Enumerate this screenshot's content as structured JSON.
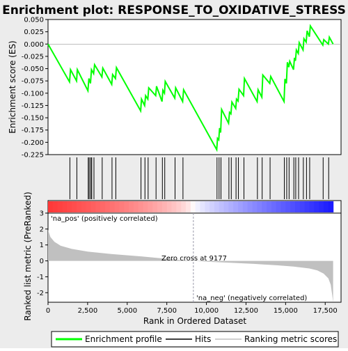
{
  "chart_data": {
    "type": "line",
    "title": "Enrichment plot: RESPONSE_TO_OXIDATIVE_STRESS",
    "top_panel": {
      "ylabel": "Enrichment score (ES)",
      "ylim": [
        -0.225,
        0.05
      ],
      "yticks": [
        0.05,
        0.025,
        0.0,
        -0.025,
        -0.05,
        -0.075,
        -0.1,
        -0.125,
        -0.15,
        -0.175,
        -0.2,
        -0.225
      ],
      "ytick_labels": [
        "0.050",
        "0.025",
        "0.000",
        "-0.025",
        "-0.050",
        "-0.075",
        "-0.100",
        "-0.125",
        "-0.150",
        "-0.175",
        "-0.200",
        "-0.225"
      ],
      "series": [
        {
          "name": "Enrichment profile",
          "color": "#00ff00",
          "x": [
            0,
            1360,
            1420,
            1800,
            1850,
            2520,
            2580,
            2680,
            2740,
            2880,
            2940,
            3400,
            3460,
            4020,
            4080,
            4260,
            4320,
            5850,
            5900,
            6100,
            6160,
            6300,
            6360,
            6800,
            6850,
            7200,
            7250,
            7350,
            7400,
            8000,
            8060,
            8500,
            8560,
            10650,
            10700,
            10780,
            10830,
            10900,
            10960,
            11400,
            11460,
            11550,
            11610,
            11850,
            11900,
            12000,
            12060,
            12350,
            12400,
            13200,
            13260,
            13500,
            13560,
            14000,
            14060,
            14900,
            14960,
            15050,
            15110,
            15200,
            15260,
            15500,
            15560,
            15620,
            15680,
            15800,
            15860,
            16100,
            16160,
            16300,
            16360,
            16500,
            16560,
            17350,
            17410,
            17700,
            17760,
            18000
          ],
          "y": [
            0.0,
            -0.077,
            -0.052,
            -0.075,
            -0.052,
            -0.095,
            -0.07,
            -0.08,
            -0.052,
            -0.06,
            -0.042,
            -0.067,
            -0.049,
            -0.082,
            -0.062,
            -0.07,
            -0.048,
            -0.136,
            -0.112,
            -0.125,
            -0.105,
            -0.112,
            -0.089,
            -0.105,
            -0.086,
            -0.117,
            -0.094,
            -0.1,
            -0.076,
            -0.11,
            -0.089,
            -0.117,
            -0.093,
            -0.215,
            -0.192,
            -0.195,
            -0.171,
            -0.18,
            -0.133,
            -0.161,
            -0.139,
            -0.142,
            -0.118,
            -0.131,
            -0.112,
            -0.116,
            -0.092,
            -0.105,
            -0.07,
            -0.117,
            -0.093,
            -0.108,
            -0.063,
            -0.08,
            -0.066,
            -0.117,
            -0.071,
            -0.08,
            -0.037,
            -0.047,
            -0.035,
            -0.052,
            -0.028,
            -0.034,
            -0.012,
            -0.019,
            0.003,
            -0.012,
            0.011,
            0.004,
            0.027,
            0.015,
            0.037,
            -0.002,
            0.009,
            0.0,
            0.014,
            0.0
          ]
        }
      ]
    },
    "hits_panel": {
      "series_name": "Hits",
      "hit_positions": [
        1380,
        1820,
        2540,
        2600,
        2700,
        2760,
        2900,
        3420,
        4040,
        4280,
        5870,
        6120,
        6320,
        6820,
        7220,
        7370,
        8020,
        8520,
        10670,
        10800,
        10920,
        11420,
        11570,
        11870,
        12020,
        12370,
        13220,
        13520,
        14020,
        14920,
        15070,
        15220,
        15520,
        15640,
        15820,
        16120,
        16320,
        16520,
        17370,
        17720
      ]
    },
    "rank_panel": {
      "ylabel": "Ranked list metric (PreRanked)",
      "ylim": [
        -2.6,
        3.0
      ],
      "yticks": [
        3,
        2,
        1,
        0,
        -1,
        -2
      ],
      "ytick_labels": [
        "3",
        "2",
        "1",
        "0",
        "-1",
        "-2"
      ],
      "series_name": "Ranking metric scores",
      "x": [
        0,
        150,
        400,
        800,
        1500,
        2500,
        4000,
        6000,
        8000,
        9177,
        10000,
        11500,
        13000,
        14500,
        15500,
        16500,
        17000,
        17400,
        17700,
        17850,
        17950,
        18000
      ],
      "y": [
        1.95,
        1.5,
        1.2,
        0.95,
        0.75,
        0.58,
        0.43,
        0.27,
        0.08,
        0.0,
        -0.05,
        -0.12,
        -0.19,
        -0.28,
        -0.36,
        -0.48,
        -0.6,
        -0.8,
        -1.1,
        -1.5,
        -2.2,
        -2.6
      ],
      "pos_label": "'na_pos' (positively correlated)",
      "neg_label": "'na_neg' (negatively correlated)",
      "zero_cross_label": "Zero cross at 9177",
      "zero_cross": 9177
    },
    "xaxis": {
      "label": "Rank in Ordered Dataset",
      "xlim": [
        0,
        18500
      ],
      "xticks": [
        0,
        2500,
        5000,
        7500,
        10000,
        12500,
        15000,
        17500
      ],
      "xtick_labels": [
        "0",
        "2,500",
        "5,000",
        "7,500",
        "10,000",
        "12,500",
        "15,000",
        "17,500"
      ]
    },
    "legend": {
      "placement": "bottom",
      "items": [
        "Enrichment profile",
        "Hits",
        "Ranking metric scores"
      ]
    },
    "colors": {
      "profile": "#00ff00",
      "hits": "#000000",
      "metric_fill": "#c0c0c0",
      "pos_text": "#cc0000",
      "neg_text": "#0000cc",
      "zero_line": "#9999aa"
    }
  }
}
